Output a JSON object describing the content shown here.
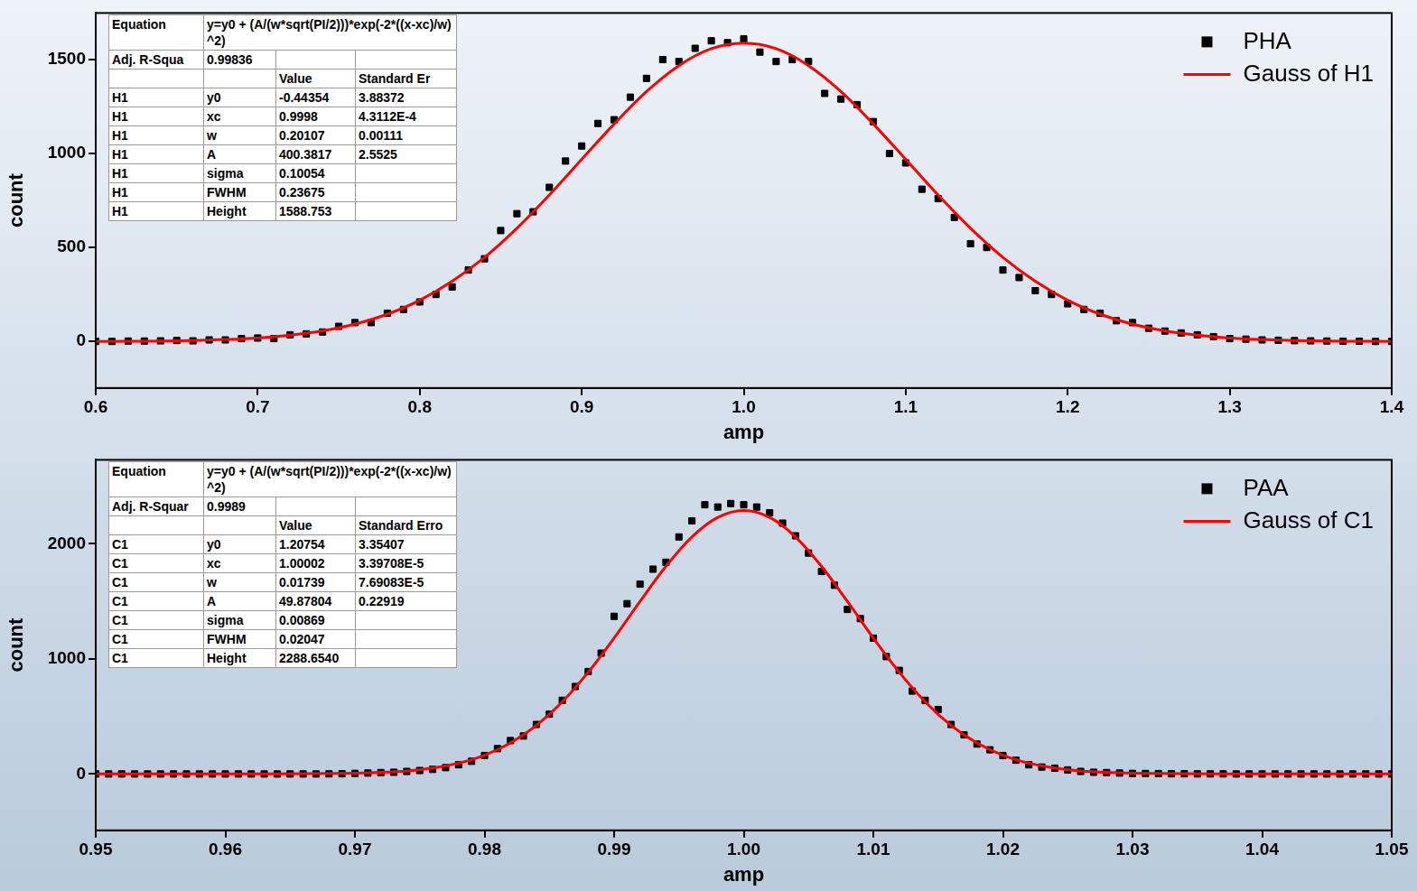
{
  "chart_data": [
    {
      "type": "scatter",
      "xlabel": "amp",
      "ylabel": "count",
      "xlim": [
        0.6,
        1.4
      ],
      "xticks": [
        0.6,
        0.7,
        0.8,
        0.9,
        {
          "value": 1,
          "label": "1.0"
        },
        1.1,
        1.2,
        1.3,
        1.4
      ],
      "ylim": [
        -248,
        1748
      ],
      "yticks": [
        0,
        500,
        1000,
        1500
      ],
      "grid": false,
      "legend": "upper right",
      "series": [
        {
          "name": "PHA",
          "type": "scatter",
          "marker": "square",
          "color": "#000000",
          "x": [
            0.6,
            0.61,
            0.62,
            0.63,
            0.64,
            0.65,
            0.66,
            0.67,
            0.68,
            0.69,
            0.7,
            0.71,
            0.72,
            0.73,
            0.74,
            0.75,
            0.76,
            0.77,
            0.78,
            0.79,
            0.8,
            0.81,
            0.82,
            0.83,
            0.84,
            0.85,
            0.86,
            0.87,
            0.88,
            0.89,
            0.9,
            0.91,
            0.92,
            0.93,
            0.94,
            0.95,
            0.96,
            0.97,
            0.98,
            0.99,
            1,
            1.01,
            1.02,
            1.03,
            1.04,
            1.05,
            1.06,
            1.07,
            1.08,
            1.09,
            1.1,
            1.11,
            1.12,
            1.13,
            1.14,
            1.15,
            1.16,
            1.17,
            1.18,
            1.19,
            1.2,
            1.21,
            1.22,
            1.23,
            1.24,
            1.25,
            1.26,
            1.27,
            1.28,
            1.29,
            1.3,
            1.31,
            1.32,
            1.33,
            1.34,
            1.35,
            1.36,
            1.37,
            1.38,
            1.39,
            1.4
          ],
          "values": [
            0,
            0,
            2,
            2,
            3,
            5,
            3,
            8,
            8,
            15,
            18,
            15,
            35,
            40,
            50,
            80,
            100,
            100,
            150,
            170,
            210,
            250,
            290,
            380,
            440,
            590,
            680,
            690,
            820,
            960,
            1040,
            1160,
            1180,
            1300,
            1400,
            1500,
            1490,
            1560,
            1600,
            1590,
            1610,
            1540,
            1490,
            1500,
            1490,
            1320,
            1290,
            1260,
            1170,
            1000,
            950,
            810,
            760,
            660,
            520,
            500,
            380,
            340,
            270,
            250,
            200,
            170,
            150,
            110,
            100,
            70,
            55,
            45,
            35,
            25,
            15,
            12,
            8,
            6,
            4,
            3,
            2,
            1,
            1,
            0,
            0
          ]
        },
        {
          "name": "Gauss of H1",
          "type": "line",
          "line_style": "solid",
          "color": "#ff0000",
          "x": [
            0.6,
            0.62,
            0.64,
            0.66,
            0.68,
            0.7,
            0.72,
            0.74,
            0.76,
            0.78,
            0.8,
            0.82,
            0.84,
            0.86,
            0.88,
            0.9,
            0.92,
            0.94,
            0.96,
            0.98,
            1,
            1.02,
            1.04,
            1.06,
            1.08,
            1.1,
            1.12,
            1.14,
            1.16,
            1.18,
            1.2,
            1.22,
            1.24,
            1.26,
            1.28,
            1.3,
            1.32,
            1.34,
            1.36,
            1.38,
            1.4
          ],
          "values": [
            0,
            1,
            2,
            5,
            10,
            18,
            33,
            56,
            92,
            145,
            219,
            320,
            447,
            602,
            779,
            969,
            1157,
            1330,
            1468,
            1558,
            1588,
            1558,
            1468,
            1330,
            1157,
            969,
            779,
            602,
            447,
            320,
            219,
            145,
            92,
            56,
            33,
            18,
            10,
            5,
            2,
            1,
            0
          ]
        }
      ],
      "table": {
        "rows": [
          [
            "Equation",
            "y=y0 + (A/(w*sqrt(PI/2)))*exp(-2*((x-xc)/w)^2)"
          ],
          [
            "Adj. R-Squa",
            "0.99836",
            null,
            null
          ],
          [
            null,
            null,
            "Value",
            "Standard Er"
          ],
          [
            "H1",
            "y0",
            "-0.44354",
            "3.88372"
          ],
          [
            "H1",
            "xc",
            "0.9998",
            "4.3112E-4"
          ],
          [
            "H1",
            "w",
            "0.20107",
            "0.00111"
          ],
          [
            "H1",
            "A",
            "400.3817",
            "2.5525"
          ],
          [
            "H1",
            "sigma",
            "0.10054",
            null
          ],
          [
            "H1",
            "FWHM",
            "0.23675",
            null
          ],
          [
            "H1",
            "Height",
            "1588.753",
            null
          ]
        ]
      }
    },
    {
      "type": "scatter",
      "xlabel": "amp",
      "ylabel": "count",
      "xlim": [
        0.95,
        1.05
      ],
      "xticks": [
        0.95,
        0.96,
        0.97,
        0.98,
        0.99,
        {
          "value": 1,
          "label": "1.00"
        },
        1.01,
        1.02,
        1.03,
        1.04,
        1.05
      ],
      "ylim": [
        -490,
        2730
      ],
      "yticks": [
        0,
        1000,
        2000
      ],
      "grid": false,
      "legend": "upper right",
      "series": [
        {
          "name": "PAA",
          "type": "scatter",
          "marker": "square",
          "color": "#000000",
          "x": [
            0.95,
            0.951,
            0.952,
            0.953,
            0.954,
            0.955,
            0.956,
            0.957,
            0.958,
            0.959,
            0.96,
            0.961,
            0.962,
            0.963,
            0.964,
            0.965,
            0.966,
            0.967,
            0.968,
            0.969,
            0.97,
            0.971,
            0.972,
            0.973,
            0.974,
            0.975,
            0.976,
            0.977,
            0.978,
            0.979,
            0.98,
            0.981,
            0.982,
            0.983,
            0.984,
            0.985,
            0.986,
            0.987,
            0.988,
            0.989,
            0.99,
            0.991,
            0.992,
            0.993,
            0.994,
            0.995,
            0.996,
            0.997,
            0.998,
            0.999,
            1,
            1.001,
            1.002,
            1.003,
            1.004,
            1.005,
            1.006,
            1.007,
            1.008,
            1.009,
            1.01,
            1.011,
            1.012,
            1.013,
            1.014,
            1.015,
            1.016,
            1.017,
            1.018,
            1.019,
            1.02,
            1.021,
            1.022,
            1.023,
            1.024,
            1.025,
            1.026,
            1.027,
            1.028,
            1.029,
            1.03,
            1.031,
            1.032,
            1.033,
            1.034,
            1.035,
            1.036,
            1.037,
            1.038,
            1.039,
            1.04,
            1.041,
            1.042,
            1.043,
            1.044,
            1.045,
            1.046,
            1.047,
            1.048,
            1.049,
            1.05
          ],
          "values": [
            0,
            0,
            0,
            0,
            0,
            0,
            0,
            0,
            0,
            0,
            0,
            0,
            0,
            0,
            0,
            0,
            0,
            0,
            1,
            2,
            5,
            8,
            12,
            15,
            22,
            30,
            40,
            55,
            80,
            110,
            160,
            220,
            290,
            330,
            430,
            520,
            640,
            760,
            890,
            1050,
            1370,
            1480,
            1650,
            1780,
            1840,
            2060,
            2200,
            2340,
            2320,
            2350,
            2340,
            2320,
            2270,
            2180,
            2070,
            1920,
            1760,
            1640,
            1430,
            1350,
            1180,
            1020,
            900,
            720,
            640,
            560,
            430,
            340,
            260,
            210,
            160,
            120,
            80,
            60,
            50,
            35,
            22,
            15,
            12,
            8,
            5,
            4,
            3,
            2,
            2,
            1,
            1,
            1,
            0,
            0,
            0,
            0,
            0,
            0,
            0,
            0,
            0,
            0,
            0,
            0,
            0
          ]
        },
        {
          "name": "Gauss of C1",
          "type": "line",
          "line_style": "solid",
          "color": "#ff0000",
          "x": [
            0.95,
            0.952,
            0.954,
            0.956,
            0.958,
            0.96,
            0.962,
            0.964,
            0.966,
            0.968,
            0.97,
            0.972,
            0.974,
            0.976,
            0.978,
            0.98,
            0.982,
            0.984,
            0.986,
            0.988,
            0.99,
            0.992,
            0.994,
            0.996,
            0.998,
            1,
            1.002,
            1.004,
            1.006,
            1.008,
            1.01,
            1.012,
            1.014,
            1.016,
            1.018,
            1.02,
            1.022,
            1.024,
            1.026,
            1.028,
            1.03,
            1.032,
            1.034,
            1.036,
            1.038,
            1.04,
            1.042,
            1.044,
            1.046,
            1.048,
            1.05
          ],
          "values": [
            1,
            1,
            1,
            1,
            1,
            1,
            1,
            1,
            2,
            4,
            7,
            14,
            27,
            52,
            94,
            163,
            270,
            422,
            627,
            884,
            1182,
            1500,
            1805,
            2060,
            2230,
            2290,
            2230,
            2060,
            1805,
            1500,
            1182,
            884,
            627,
            422,
            270,
            163,
            94,
            52,
            27,
            14,
            7,
            4,
            2,
            1,
            1,
            1,
            1,
            1,
            1,
            1,
            1
          ]
        }
      ],
      "table": {
        "rows": [
          [
            "Equation",
            "y=y0 + (A/(w*sqrt(PI/2)))*exp(-2*((x-xc)/w)^2)"
          ],
          [
            "Adj. R-Squar",
            "0.9989",
            null,
            null
          ],
          [
            null,
            null,
            "Value",
            "Standard Erro"
          ],
          [
            "C1",
            "y0",
            "1.20754",
            "3.35407"
          ],
          [
            "C1",
            "xc",
            "1.00002",
            "3.39708E-5"
          ],
          [
            "C1",
            "w",
            "0.01739",
            "7.69083E-5"
          ],
          [
            "C1",
            "A",
            "49.87804",
            "0.22919"
          ],
          [
            "C1",
            "sigma",
            "0.00869",
            null
          ],
          [
            "C1",
            "FWHM",
            "0.02047",
            null
          ],
          [
            "C1",
            "Height",
            "2288.6540",
            null
          ]
        ]
      }
    }
  ]
}
